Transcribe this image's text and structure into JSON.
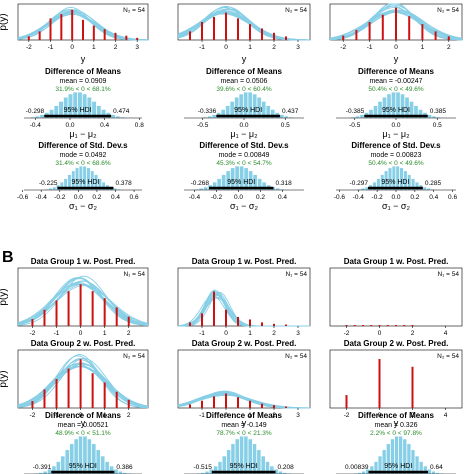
{
  "panel_b_label": "B",
  "axis": {
    "y_label": "p(y)",
    "x_label": "y",
    "mu_label": "μ₁ − μ₂",
    "sigma_label": "σ₁ − σ₂",
    "hdi_label": "95% HDI"
  },
  "colors": {
    "posterior_curves": "#87cfe6",
    "data_bars": "#cc1111",
    "histogram": "#87cfe6",
    "mean_text": "#000000",
    "green_text": "#2a8a2a"
  },
  "chart_data": [
    {
      "type": "bar",
      "panel": "A",
      "row": "pp2",
      "column": 1,
      "title": "",
      "n_label": "N₂ = 54",
      "x_ticks": [
        "-2",
        "-1",
        "0",
        "1",
        "2",
        "3"
      ],
      "xlim": [
        -2.5,
        3.5
      ],
      "y_ticks": [
        "0.0",
        "0.2",
        "0.4"
      ],
      "ylim": [
        0,
        0.5
      ],
      "curve": {
        "center": 0,
        "sd": 1.0
      },
      "bars": [
        {
          "x": -2,
          "v": 0.05
        },
        {
          "x": -1.5,
          "v": 0.12
        },
        {
          "x": -1,
          "v": 0.3
        },
        {
          "x": -0.5,
          "v": 0.36
        },
        {
          "x": 0,
          "v": 0.42
        },
        {
          "x": 0.5,
          "v": 0.28
        },
        {
          "x": 1,
          "v": 0.2
        },
        {
          "x": 1.5,
          "v": 0.15
        },
        {
          "x": 2,
          "v": 0.1
        },
        {
          "x": 2.5,
          "v": 0.06
        },
        {
          "x": 3,
          "v": 0.03
        }
      ]
    },
    {
      "type": "bar",
      "panel": "A",
      "row": "pp2",
      "column": 2,
      "title": "",
      "n_label": "N₂ = 54",
      "x_ticks": [
        "-1",
        "0",
        "1",
        "2",
        "3"
      ],
      "xlim": [
        -2,
        3.5
      ],
      "y_ticks": [
        "0.0",
        "0.2",
        "0.4"
      ],
      "ylim": [
        0,
        0.5
      ],
      "curve": {
        "center": 0,
        "sd": 1.0
      },
      "bars": [
        {
          "x": -1.5,
          "v": 0.12
        },
        {
          "x": -1,
          "v": 0.25
        },
        {
          "x": -0.5,
          "v": 0.32
        },
        {
          "x": 0,
          "v": 0.38
        },
        {
          "x": 0.5,
          "v": 0.3
        },
        {
          "x": 1,
          "v": 0.22
        },
        {
          "x": 1.5,
          "v": 0.16
        },
        {
          "x": 2,
          "v": 0.1
        },
        {
          "x": 2.5,
          "v": 0.05
        }
      ]
    },
    {
      "type": "bar",
      "panel": "A",
      "row": "pp2",
      "column": 3,
      "title": "",
      "n_label": "N₂ = 54",
      "x_ticks": [
        "-2",
        "-1",
        "0",
        "1",
        "2"
      ],
      "xlim": [
        -2.5,
        2.5
      ],
      "y_ticks": [
        "0.0",
        "0.2",
        "0.4"
      ],
      "ylim": [
        0,
        0.5
      ],
      "curve": {
        "center": 0,
        "sd": 0.9
      },
      "bars": [
        {
          "x": -2,
          "v": 0.06
        },
        {
          "x": -1.5,
          "v": 0.14
        },
        {
          "x": -1,
          "v": 0.25
        },
        {
          "x": -0.5,
          "v": 0.35
        },
        {
          "x": 0,
          "v": 0.45
        },
        {
          "x": 0.5,
          "v": 0.33
        },
        {
          "x": 1,
          "v": 0.22
        },
        {
          "x": 1.5,
          "v": 0.12
        },
        {
          "x": 2,
          "v": 0.05
        }
      ]
    },
    {
      "type": "bar",
      "panel": "A",
      "row": "mean",
      "column": 1,
      "title": "Difference of Means",
      "mode_text": "mean = 0.0909",
      "pct_text": "31.9% < 0 < 68.1%",
      "hdi_lo": "-0.298",
      "hdi_hi": "0.474",
      "hdi": [
        -0.298,
        0.474
      ],
      "x_ticks": [
        "-0.4",
        "0.0",
        "0.4",
        "0.8"
      ],
      "xlim": [
        -0.6,
        0.9
      ],
      "hist_center": 0.09,
      "hist_sd": 0.2
    },
    {
      "type": "bar",
      "panel": "A",
      "row": "mean",
      "column": 2,
      "title": "Difference of Means",
      "mode_text": "mean = 0.0506",
      "pct_text": "39.6% < 0 < 60.4%",
      "hdi_lo": "-0.336",
      "hdi_hi": "0.437",
      "hdi": [
        -0.336,
        0.437
      ],
      "x_ticks": [
        "-0.5",
        "0.0",
        "0.5"
      ],
      "xlim": [
        -0.8,
        0.8
      ],
      "hist_center": 0.05,
      "hist_sd": 0.2
    },
    {
      "type": "bar",
      "panel": "A",
      "row": "mean",
      "column": 3,
      "title": "Difference of Means",
      "mode_text": "mean = -0.00247",
      "pct_text": "50.4% < 0 < 49.6%",
      "hdi_lo": "-0.385",
      "hdi_hi": "0.385",
      "hdi": [
        -0.385,
        0.385
      ],
      "x_ticks": [
        "-0.5",
        "0.0",
        "0.5"
      ],
      "xlim": [
        -0.8,
        0.8
      ],
      "hist_center": 0.0,
      "hist_sd": 0.2
    },
    {
      "type": "bar",
      "panel": "A",
      "row": "sd",
      "column": 1,
      "title": "Difference of Std. Dev.s",
      "mode_text": "mode = 0.0492",
      "pct_text": "31.4% < 0 < 68.6%",
      "hdi_lo": "-0.225",
      "hdi_hi": "0.378",
      "hdi": [
        -0.225,
        0.378
      ],
      "x_ticks": [
        "-0.6",
        "-0.4",
        "-0.2",
        "0.0",
        "0.2",
        "0.4",
        "0.6"
      ],
      "xlim": [
        -0.65,
        0.75
      ],
      "hist_center": 0.05,
      "hist_sd": 0.15,
      "x_label_key": "sigma"
    },
    {
      "type": "bar",
      "panel": "A",
      "row": "sd",
      "column": 2,
      "title": "Difference of Std. Dev.s",
      "mode_text": "mode = 0.00849",
      "pct_text": "45.3% < 0 < 54.7%",
      "hdi_lo": "-0.268",
      "hdi_hi": "0.318",
      "hdi": [
        -0.268,
        0.318
      ],
      "x_ticks": [
        "-0.4",
        "-0.2",
        "0.0",
        "0.2",
        "0.4"
      ],
      "xlim": [
        -0.55,
        0.65
      ],
      "hist_center": 0.01,
      "hist_sd": 0.15,
      "x_label_key": "sigma"
    },
    {
      "type": "bar",
      "panel": "A",
      "row": "sd",
      "column": 3,
      "title": "Difference of Std. Dev.s",
      "mode_text": "mode = 0.00823",
      "pct_text": "50.4% < 0 < 49.6%",
      "hdi_lo": "-0.297",
      "hdi_hi": "0.285",
      "hdi": [
        -0.297,
        0.285
      ],
      "x_ticks": [
        "-0.6",
        "-0.4",
        "-0.2",
        "0.0",
        "0.2",
        "0.4",
        "0.6"
      ],
      "xlim": [
        -0.7,
        0.7
      ],
      "hist_center": 0.0,
      "hist_sd": 0.15,
      "x_label_key": "sigma"
    },
    {
      "type": "bar",
      "panel": "B",
      "row": "pp1",
      "column": 1,
      "title": "Data Group 1 w. Post. Pred.",
      "n_label": "N₁ = 54",
      "x_ticks": [
        "-2",
        "-1",
        "0",
        "1",
        "2"
      ],
      "xlim": [
        -2.6,
        2.8
      ],
      "y_ticks": [
        "0.0",
        "0.2",
        "0.4"
      ],
      "ylim": [
        0,
        0.5
      ],
      "curve": {
        "center": 0,
        "sd": 1.0
      },
      "bars": [
        {
          "x": -2,
          "v": 0.06
        },
        {
          "x": -1.5,
          "v": 0.14
        },
        {
          "x": -1,
          "v": 0.22
        },
        {
          "x": -0.5,
          "v": 0.3
        },
        {
          "x": 0,
          "v": 0.36
        },
        {
          "x": 0.5,
          "v": 0.3
        },
        {
          "x": 1,
          "v": 0.24
        },
        {
          "x": 1.5,
          "v": 0.16
        },
        {
          "x": 2,
          "v": 0.08
        }
      ]
    },
    {
      "type": "bar",
      "panel": "B",
      "row": "pp1",
      "column": 2,
      "title": "Data Group 1 w. Post. Pred.",
      "n_label": "N₁ = 54",
      "x_ticks": [
        "-1",
        "0",
        "1",
        "2",
        "3"
      ],
      "xlim": [
        -2,
        3.5
      ],
      "y_ticks": [
        "0.0",
        "0.5",
        "1.0",
        "1.5"
      ],
      "ylim": [
        0,
        1.6
      ],
      "curve": {
        "center": -0.4,
        "sd": 0.45
      },
      "bars": [
        {
          "x": -1.5,
          "v": 0.1
        },
        {
          "x": -1,
          "v": 0.35
        },
        {
          "x": -0.5,
          "v": 0.95
        },
        {
          "x": 0,
          "v": 0.45
        },
        {
          "x": 0.5,
          "v": 0.25
        },
        {
          "x": 1,
          "v": 0.18
        },
        {
          "x": 1.5,
          "v": 0.1
        },
        {
          "x": 2,
          "v": 0.06
        },
        {
          "x": 2.5,
          "v": 0.04
        }
      ]
    },
    {
      "type": "bar",
      "panel": "B",
      "row": "pp1",
      "column": 3,
      "title": "Data Group 1 w. Post. Pred.",
      "n_label": "N₁ = 54",
      "x_ticks": [
        "-2",
        "0",
        "2",
        "4"
      ],
      "xlim": [
        -3,
        5
      ],
      "y_ticks": [
        "0",
        "2",
        "4",
        "6",
        "8"
      ],
      "ylim": [
        0,
        9
      ],
      "curve": null,
      "bars": [
        {
          "x": -2,
          "v": 0.15
        },
        {
          "x": -1.5,
          "v": 0.15
        },
        {
          "x": -1,
          "v": 0.15
        },
        {
          "x": -0.5,
          "v": 0.15
        },
        {
          "x": 0,
          "v": 0.15
        },
        {
          "x": 0.5,
          "v": 0.15
        },
        {
          "x": 1,
          "v": 0.15
        },
        {
          "x": 1.5,
          "v": 0.15
        },
        {
          "x": 2,
          "v": 0.15
        }
      ]
    },
    {
      "type": "bar",
      "panel": "B",
      "row": "pp2",
      "column": 1,
      "title": "Data Group 2 w. Post. Pred.",
      "n_label": "N₂ = 54",
      "x_ticks": [
        "-2",
        "-1",
        "0",
        "1",
        "2"
      ],
      "xlim": [
        -2.6,
        2.8
      ],
      "y_ticks": [
        "0.0",
        "0.2",
        "0.4"
      ],
      "ylim": [
        0,
        0.5
      ],
      "curve": {
        "center": 0,
        "sd": 1.0
      },
      "bars": [
        {
          "x": -2,
          "v": 0.06
        },
        {
          "x": -1.5,
          "v": 0.16
        },
        {
          "x": -1,
          "v": 0.25
        },
        {
          "x": -0.5,
          "v": 0.34
        },
        {
          "x": 0,
          "v": 0.42
        },
        {
          "x": 0.5,
          "v": 0.3
        },
        {
          "x": 1,
          "v": 0.22
        },
        {
          "x": 1.5,
          "v": 0.14
        },
        {
          "x": 2,
          "v": 0.07
        }
      ]
    },
    {
      "type": "bar",
      "panel": "B",
      "row": "pp2",
      "column": 2,
      "title": "Data Group 2 w. Post. Pred.",
      "n_label": "N₂ = 54",
      "x_ticks": [
        "-1",
        "0",
        "1",
        "2",
        "3"
      ],
      "xlim": [
        -2,
        3.5
      ],
      "y_ticks": [
        "0.0",
        "0.5",
        "1.0",
        "1.5"
      ],
      "ylim": [
        0,
        1.6
      ],
      "curve": {
        "center": -0.1,
        "sd": 1.0
      },
      "bars": [
        {
          "x": -1.5,
          "v": 0.1
        },
        {
          "x": -1,
          "v": 0.2
        },
        {
          "x": -0.5,
          "v": 0.32
        },
        {
          "x": 0,
          "v": 0.4
        },
        {
          "x": 0.5,
          "v": 0.3
        },
        {
          "x": 1,
          "v": 0.2
        },
        {
          "x": 1.5,
          "v": 0.12
        },
        {
          "x": 2,
          "v": 0.08
        },
        {
          "x": 2.5,
          "v": 0.04
        }
      ]
    },
    {
      "type": "bar",
      "panel": "B",
      "row": "pp2",
      "column": 3,
      "title": "Data Group 2 w. Post. Pred.",
      "n_label": "N₂ = 54",
      "x_ticks": [
        "-2",
        "0",
        "2",
        "4"
      ],
      "xlim": [
        -3,
        5
      ],
      "y_ticks": [
        "0",
        "2",
        "4",
        "6",
        "8"
      ],
      "ylim": [
        0,
        9
      ],
      "curve": null,
      "bars": [
        {
          "x": -2,
          "v": 2.0
        },
        {
          "x": 0,
          "v": 7.6
        },
        {
          "x": 2,
          "v": 6.4
        }
      ]
    },
    {
      "type": "bar",
      "panel": "B",
      "row": "mean",
      "column": 1,
      "title": "Difference of Means",
      "mode_text": "mean = 0.00521",
      "pct_text": "48.9% < 0 < 51.1%",
      "hdi_lo": "-0.391",
      "hdi_hi": "0.386",
      "hdi": [
        -0.391,
        0.386
      ],
      "x_ticks": [],
      "xlim": [
        -0.8,
        0.8
      ],
      "hist_center": 0.0,
      "hist_sd": 0.2
    },
    {
      "type": "bar",
      "panel": "B",
      "row": "mean",
      "column": 2,
      "title": "Difference of Means",
      "mode_text": "mean = -0.149",
      "pct_text": "78.7% < 0 < 21.3%",
      "hdi_lo": "-0.515",
      "hdi_hi": "0.208",
      "hdi": [
        -0.515,
        0.208
      ],
      "x_ticks": [],
      "xlim": [
        -0.9,
        0.6
      ],
      "hist_center": -0.15,
      "hist_sd": 0.18
    },
    {
      "type": "bar",
      "panel": "B",
      "row": "mean",
      "column": 3,
      "title": "Difference of Means",
      "mode_text": "mean = 0.326",
      "pct_text": "2.2% < 0 < 97.8%",
      "hdi_lo": "0.00839",
      "hdi_hi": "0.64",
      "hdi": [
        0.00839,
        0.64
      ],
      "x_ticks": [],
      "xlim": [
        -0.4,
        1.0
      ],
      "hist_center": 0.33,
      "hist_sd": 0.16
    }
  ]
}
